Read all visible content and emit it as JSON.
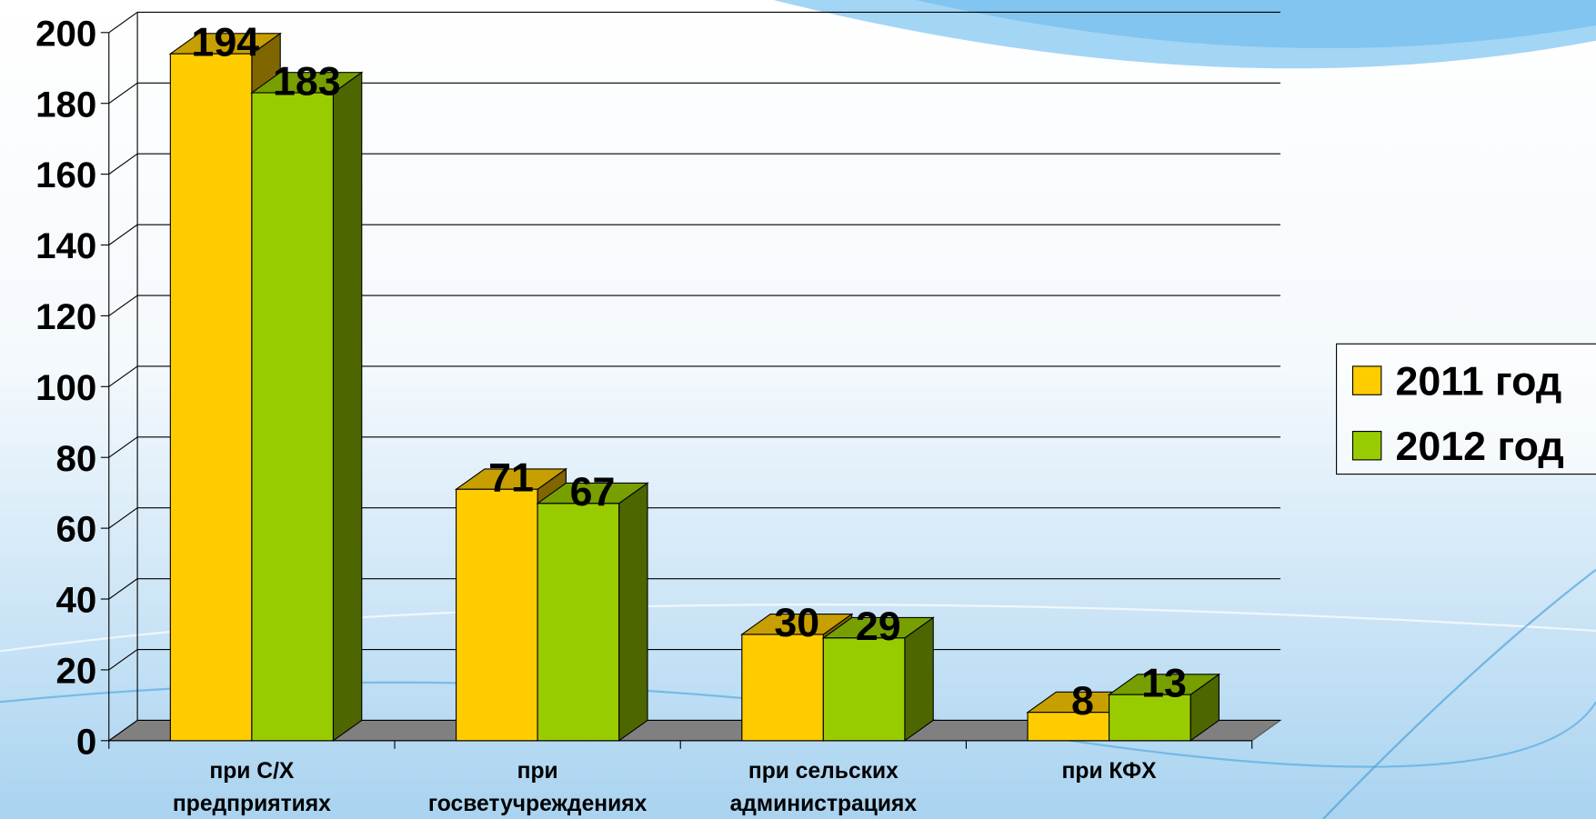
{
  "chart_data": {
    "type": "bar3d",
    "categories": [
      "при С/Х предприятиях",
      "при госветучреждениях",
      "при сельских администрациях",
      "при КФХ"
    ],
    "series": [
      {
        "name": "2011 год",
        "color": "#ffcc00",
        "values": [
          194,
          71,
          30,
          8
        ]
      },
      {
        "name": "2012 год",
        "color": "#99cc00",
        "values": [
          183,
          67,
          29,
          13
        ]
      }
    ],
    "ylim": [
      0,
      200
    ],
    "yticks": [
      0,
      20,
      40,
      60,
      80,
      100,
      120,
      140,
      160,
      180,
      200
    ],
    "grid": true,
    "legend": "right"
  }
}
